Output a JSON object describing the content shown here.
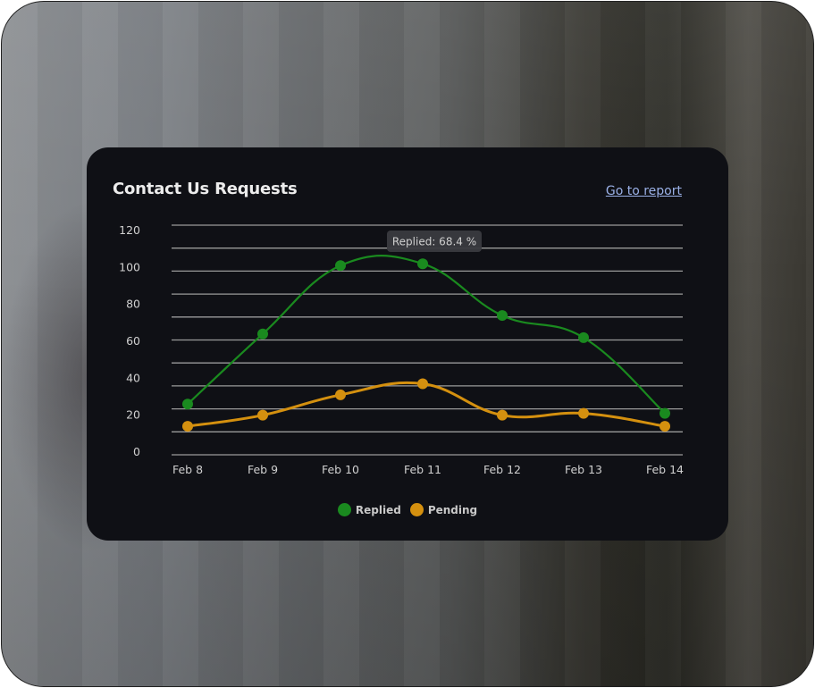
{
  "card": {
    "title": "Contact Us Requests",
    "report_link": "Go to report"
  },
  "tooltip": {
    "text": "Replied: 68.4 %"
  },
  "colors": {
    "card_bg": "#0f1015",
    "replied": "#1a8a1f",
    "pending": "#d4900f",
    "gridline": "#9a9a9a",
    "link": "#9ab0e6",
    "tooltip_bg": "#3a3b3f"
  },
  "legend": [
    {
      "label": "Replied",
      "color": "#1a8a1f"
    },
    {
      "label": "Pending",
      "color": "#d4900f"
    }
  ],
  "chart_data": {
    "type": "line",
    "title": "Contact Us Requests",
    "categories": [
      "Feb 8",
      "Feb 9",
      "Feb 10",
      "Feb 11",
      "Feb 12",
      "Feb 13",
      "Feb 14"
    ],
    "series": [
      {
        "name": "Replied",
        "color": "#1a8a1f",
        "values": [
          26,
          64,
          101,
          102,
          74,
          62,
          21
        ]
      },
      {
        "name": "Pending",
        "color": "#d4900f",
        "values": [
          14,
          20,
          31,
          37,
          20,
          21,
          14
        ]
      }
    ],
    "yticks": [
      0,
      20,
      40,
      60,
      80,
      100,
      120
    ],
    "ylim": [
      0,
      120
    ],
    "xlabel": "",
    "ylabel": "",
    "grid": true,
    "smooth": true,
    "legend_position": "bottom",
    "annotation": "Replied: 68.4 %"
  }
}
